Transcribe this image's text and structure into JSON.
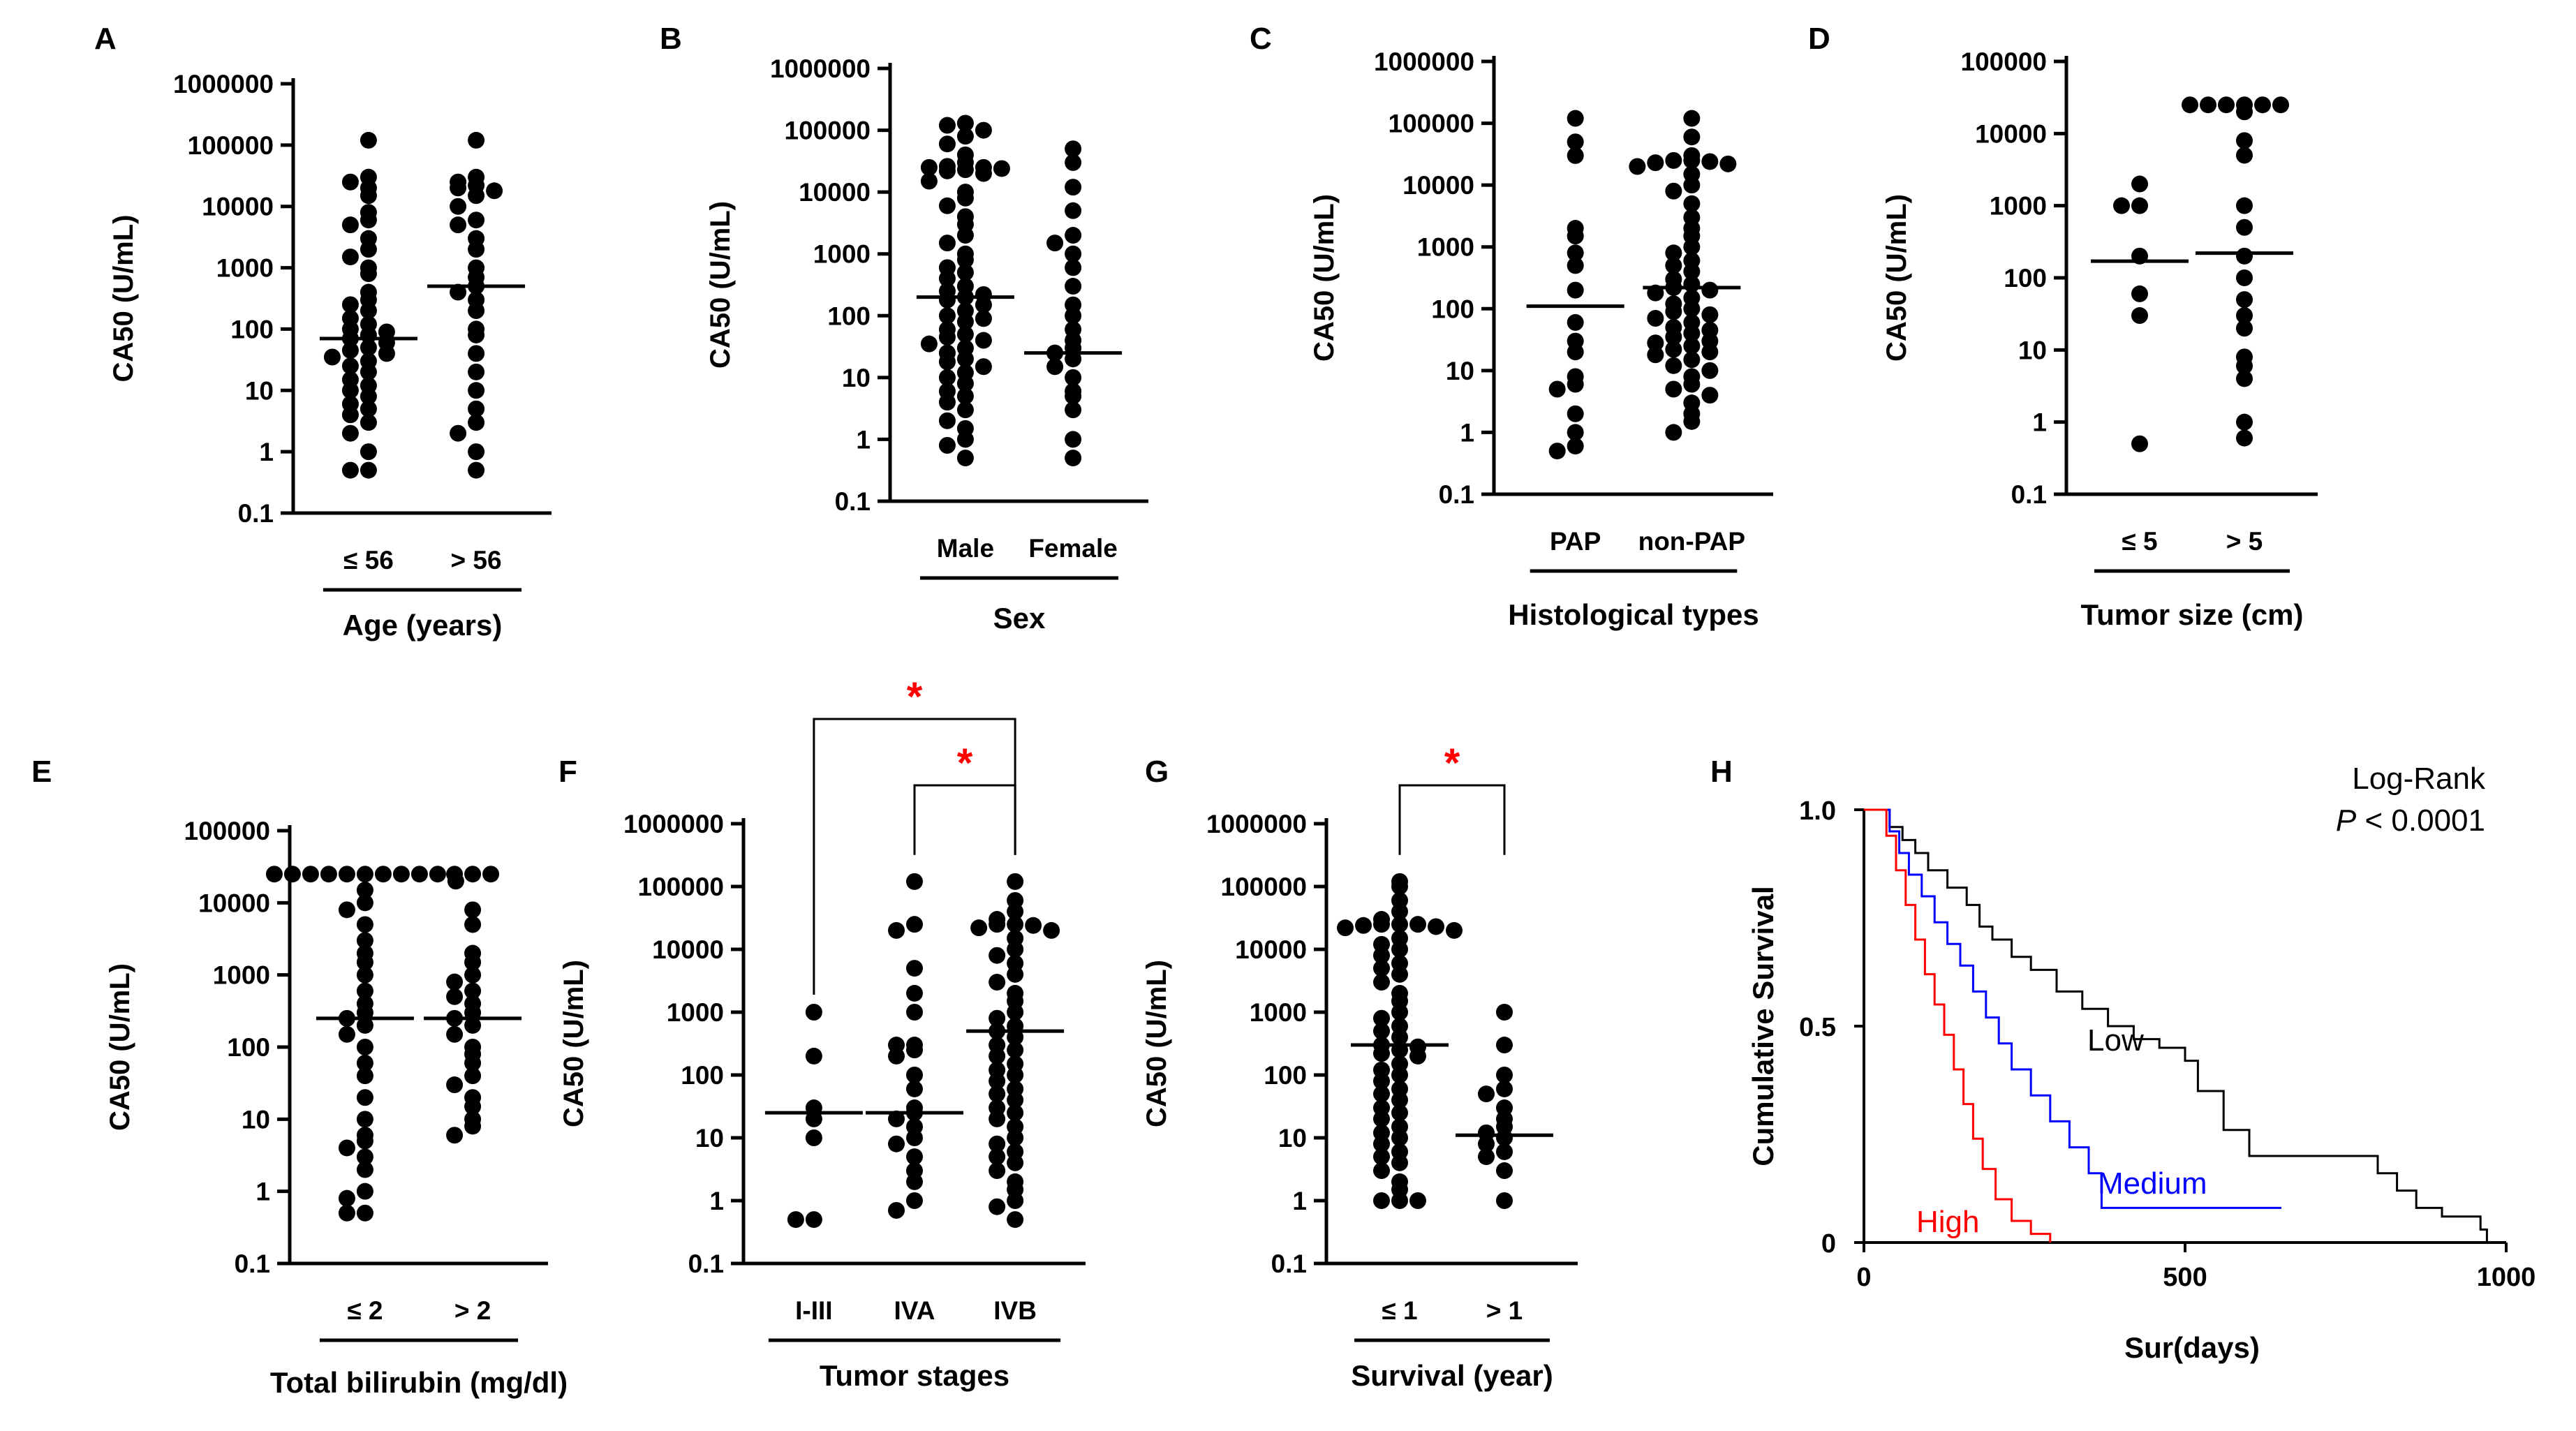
{
  "figure": {
    "panel_labels": [
      "A",
      "B",
      "C",
      "D",
      "E",
      "F",
      "G",
      "H"
    ]
  },
  "chart_data": [
    {
      "panel": "A",
      "type": "scatter",
      "scale": "log",
      "ylabel": "CA50 (U/mL)",
      "ylim": [
        0.1,
        1000000
      ],
      "yticks": [
        "0.1",
        "1",
        "10",
        "100",
        "1000",
        "10000",
        "100000",
        "1000000"
      ],
      "xlabel": "Age (years)",
      "categories": [
        "≤ 56",
        "> 56"
      ],
      "medians": [
        70,
        500
      ],
      "significance": [],
      "series": [
        {
          "name": "≤ 56",
          "values": [
            120000,
            30000,
            25000,
            20000,
            15000,
            8000,
            6000,
            5000,
            3000,
            2000,
            1500,
            1000,
            800,
            400,
            300,
            250,
            200,
            150,
            120,
            100,
            90,
            80,
            70,
            60,
            50,
            45,
            40,
            35,
            30,
            25,
            20,
            15,
            12,
            10,
            8,
            6,
            5,
            4,
            3,
            2,
            1,
            0.5,
            0.5
          ]
        },
        {
          "name": "> 56",
          "values": [
            120000,
            30000,
            25000,
            22000,
            20000,
            18000,
            15000,
            10000,
            6000,
            5000,
            3000,
            2000,
            1000,
            700,
            500,
            400,
            300,
            200,
            100,
            80,
            40,
            20,
            10,
            5,
            3,
            2,
            1,
            0.5
          ]
        }
      ]
    },
    {
      "panel": "B",
      "type": "scatter",
      "scale": "log",
      "ylabel": "CA50 (U/mL)",
      "ylim": [
        0.1,
        1000000
      ],
      "yticks": [
        "0.1",
        "1",
        "10",
        "100",
        "1000",
        "10000",
        "100000",
        "1000000"
      ],
      "xlabel": "Sex",
      "categories": [
        "Male",
        "Female"
      ],
      "medians": [
        200,
        25
      ],
      "significance": [],
      "series": [
        {
          "name": "Male",
          "values": [
            130000,
            120000,
            100000,
            80000,
            60000,
            40000,
            30000,
            26000,
            25000,
            25000,
            24000,
            23000,
            22000,
            20000,
            15000,
            10000,
            8000,
            6000,
            4000,
            3000,
            2000,
            1500,
            1000,
            800,
            600,
            500,
            400,
            300,
            250,
            220,
            200,
            180,
            150,
            120,
            100,
            90,
            80,
            60,
            50,
            45,
            40,
            35,
            30,
            25,
            20,
            18,
            15,
            12,
            10,
            8,
            6,
            5,
            4,
            3,
            2,
            1.5,
            1,
            0.8,
            0.5
          ]
        },
        {
          "name": "Female",
          "values": [
            50000,
            30000,
            12000,
            5000,
            2000,
            1500,
            1000,
            600,
            300,
            150,
            100,
            60,
            40,
            30,
            25,
            20,
            15,
            10,
            6,
            5,
            3,
            1,
            0.5
          ]
        }
      ]
    },
    {
      "panel": "C",
      "type": "scatter",
      "scale": "log",
      "ylabel": "CA50 (U/mL)",
      "ylim": [
        0.1,
        1000000
      ],
      "yticks": [
        "0.1",
        "1",
        "10",
        "100",
        "1000",
        "10000",
        "100000",
        "1000000"
      ],
      "xlabel": "Histological types",
      "categories": [
        "PAP",
        "non-PAP"
      ],
      "medians": [
        110,
        220
      ],
      "significance": [],
      "series": [
        {
          "name": "PAP",
          "values": [
            120000,
            50000,
            30000,
            2000,
            1500,
            800,
            500,
            200,
            60,
            30,
            20,
            8,
            6,
            5,
            2,
            1,
            0.6,
            0.5
          ]
        },
        {
          "name": "non-PAP",
          "values": [
            120000,
            60000,
            30000,
            25000,
            25000,
            24000,
            23000,
            22000,
            20000,
            15000,
            10000,
            8000,
            5000,
            3000,
            2000,
            1500,
            1000,
            800,
            600,
            500,
            400,
            300,
            250,
            220,
            200,
            180,
            150,
            120,
            100,
            90,
            80,
            70,
            60,
            50,
            45,
            40,
            35,
            30,
            28,
            25,
            22,
            20,
            18,
            15,
            12,
            10,
            8,
            6,
            5,
            4,
            3,
            2,
            1.5,
            1
          ]
        }
      ]
    },
    {
      "panel": "D",
      "type": "scatter",
      "scale": "log",
      "ylabel": "CA50 (U/mL)",
      "ylim": [
        0.1,
        100000
      ],
      "yticks": [
        "0.1",
        "1",
        "10",
        "100",
        "1000",
        "10000",
        "100000"
      ],
      "xlabel": "Tumor size (cm)",
      "categories": [
        "≤ 5",
        "> 5"
      ],
      "medians": [
        170,
        220
      ],
      "significance": [],
      "series": [
        {
          "name": "≤ 5",
          "values": [
            2000,
            1000,
            1000,
            200,
            60,
            30,
            0.5
          ]
        },
        {
          "name": "> 5",
          "values": [
            25000,
            25000,
            25000,
            25000,
            25000,
            25000,
            20000,
            8000,
            5000,
            1000,
            500,
            200,
            100,
            50,
            30,
            20,
            8,
            6,
            4,
            1,
            0.6
          ]
        }
      ]
    },
    {
      "panel": "E",
      "type": "scatter",
      "scale": "log",
      "ylabel": "CA50 (U/mL)",
      "ylim": [
        0.1,
        100000
      ],
      "yticks": [
        "0.1",
        "1",
        "10",
        "100",
        "1000",
        "10000",
        "100000"
      ],
      "xlabel": "Total bilirubin  (mg/dl)",
      "categories": [
        "≤ 2",
        "> 2"
      ],
      "medians": [
        250,
        250
      ],
      "significance": [],
      "series": [
        {
          "name": "≤ 2",
          "values": [
            25000,
            25000,
            25000,
            25000,
            25000,
            25000,
            25000,
            25000,
            25000,
            25000,
            20000,
            15000,
            10000,
            8000,
            5000,
            3000,
            2000,
            1500,
            1000,
            600,
            400,
            300,
            250,
            200,
            150,
            100,
            60,
            40,
            20,
            10,
            6,
            5,
            4,
            3,
            2,
            1,
            0.8,
            0.5,
            0.5
          ]
        },
        {
          "name": "> 2",
          "values": [
            25000,
            25000,
            25000,
            8000,
            5000,
            2000,
            1500,
            1000,
            800,
            600,
            500,
            400,
            300,
            250,
            200,
            150,
            100,
            80,
            60,
            40,
            30,
            20,
            15,
            10,
            8,
            6
          ]
        }
      ]
    },
    {
      "panel": "F",
      "type": "scatter",
      "scale": "log",
      "ylabel": "CA50 (U/mL)",
      "ylim": [
        0.1,
        1000000
      ],
      "yticks": [
        "0.1",
        "1",
        "10",
        "100",
        "1000",
        "10000",
        "100000",
        "1000000"
      ],
      "xlabel": "Tumor stages",
      "categories": [
        "I-III",
        "IVA",
        "IVB"
      ],
      "medians": [
        25,
        25,
        500
      ],
      "significance": [
        {
          "from": 0,
          "to": 2,
          "label": "*"
        },
        {
          "from": 1,
          "to": 2,
          "label": "*"
        }
      ],
      "series": [
        {
          "name": "I-III",
          "values": [
            1000,
            200,
            30,
            20,
            10,
            0.5,
            0.5
          ]
        },
        {
          "name": "IVA",
          "values": [
            120000,
            25000,
            20000,
            5000,
            2000,
            1000,
            300,
            300,
            250,
            200,
            100,
            60,
            30,
            25,
            20,
            15,
            10,
            8,
            5,
            3,
            2,
            1,
            0.7
          ]
        },
        {
          "name": "IVB",
          "values": [
            120000,
            60000,
            40000,
            30000,
            25000,
            25000,
            24000,
            22000,
            20000,
            15000,
            10000,
            8000,
            6000,
            4000,
            3000,
            2000,
            1500,
            1000,
            800,
            600,
            500,
            400,
            300,
            250,
            200,
            150,
            120,
            100,
            80,
            60,
            50,
            40,
            30,
            25,
            20,
            15,
            10,
            8,
            6,
            5,
            4,
            3,
            2,
            1.5,
            1,
            0.8,
            0.5
          ]
        }
      ]
    },
    {
      "panel": "G",
      "type": "scatter",
      "scale": "log",
      "ylabel": "CA50 (U/mL)",
      "ylim": [
        0.1,
        1000000
      ],
      "yticks": [
        "0.1",
        "1",
        "10",
        "100",
        "1000",
        "10000",
        "100000",
        "1000000"
      ],
      "xlabel": "Survival (year)",
      "categories": [
        "≤ 1",
        "> 1"
      ],
      "medians": [
        300,
        11
      ],
      "significance": [
        {
          "from": 0,
          "to": 1,
          "label": "*"
        }
      ],
      "series": [
        {
          "name": "≤ 1",
          "values": [
            120000,
            100000,
            60000,
            40000,
            30000,
            25000,
            25000,
            25000,
            24000,
            23000,
            22000,
            20000,
            15000,
            12000,
            10000,
            8000,
            6000,
            5000,
            4000,
            3000,
            2000,
            1500,
            1000,
            800,
            600,
            500,
            400,
            300,
            280,
            250,
            220,
            200,
            150,
            120,
            100,
            80,
            60,
            50,
            40,
            30,
            25,
            20,
            15,
            12,
            10,
            8,
            6,
            5,
            4,
            3,
            2,
            1.5,
            1,
            1,
            1
          ]
        },
        {
          "name": "> 1",
          "values": [
            1000,
            300,
            100,
            60,
            50,
            30,
            20,
            15,
            12,
            10,
            8,
            6,
            5,
            3,
            1
          ]
        }
      ]
    },
    {
      "panel": "H",
      "type": "line",
      "subtype": "kaplan-meier",
      "ylabel": "Cumulative Survival",
      "xlabel": "Sur(days)",
      "xlim": [
        0,
        1000
      ],
      "ylim": [
        0,
        1
      ],
      "xticks": [
        "0",
        "500",
        "1000"
      ],
      "yticks": [
        "0",
        "0.5",
        "1.0"
      ],
      "annotation_test": "Log-Rank",
      "annotation_p_italic": "P",
      "annotation_p_rest": " < 0.0001",
      "series": [
        {
          "name": "Low",
          "color": "#000000",
          "points": [
            [
              0,
              1
            ],
            [
              25,
              1
            ],
            [
              40,
              0.96
            ],
            [
              60,
              0.93
            ],
            [
              80,
              0.9
            ],
            [
              100,
              0.86
            ],
            [
              130,
              0.82
            ],
            [
              160,
              0.78
            ],
            [
              180,
              0.73
            ],
            [
              200,
              0.7
            ],
            [
              230,
              0.66
            ],
            [
              260,
              0.63
            ],
            [
              300,
              0.58
            ],
            [
              340,
              0.54
            ],
            [
              380,
              0.5
            ],
            [
              420,
              0.47
            ],
            [
              460,
              0.45
            ],
            [
              500,
              0.42
            ],
            [
              520,
              0.35
            ],
            [
              560,
              0.26
            ],
            [
              600,
              0.2
            ],
            [
              800,
              0.16
            ],
            [
              830,
              0.12
            ],
            [
              860,
              0.08
            ],
            [
              900,
              0.06
            ],
            [
              960,
              0.03
            ],
            [
              970,
              0
            ]
          ]
        },
        {
          "name": "Medium",
          "color": "#0000ff",
          "points": [
            [
              0,
              1
            ],
            [
              25,
              1
            ],
            [
              40,
              0.95
            ],
            [
              55,
              0.9
            ],
            [
              70,
              0.85
            ],
            [
              90,
              0.8
            ],
            [
              110,
              0.74
            ],
            [
              130,
              0.69
            ],
            [
              150,
              0.64
            ],
            [
              170,
              0.58
            ],
            [
              190,
              0.52
            ],
            [
              210,
              0.46
            ],
            [
              230,
              0.4
            ],
            [
              260,
              0.34
            ],
            [
              290,
              0.28
            ],
            [
              320,
              0.22
            ],
            [
              350,
              0.16
            ],
            [
              370,
              0.08
            ],
            [
              560,
              0.08
            ],
            [
              650,
              0.08
            ]
          ]
        },
        {
          "name": "High",
          "color": "#ff0000",
          "points": [
            [
              0,
              1
            ],
            [
              20,
              1
            ],
            [
              35,
              0.94
            ],
            [
              50,
              0.86
            ],
            [
              65,
              0.78
            ],
            [
              80,
              0.7
            ],
            [
              95,
              0.62
            ],
            [
              110,
              0.55
            ],
            [
              125,
              0.48
            ],
            [
              140,
              0.4
            ],
            [
              155,
              0.32
            ],
            [
              170,
              0.24
            ],
            [
              185,
              0.17
            ],
            [
              205,
              0.1
            ],
            [
              230,
              0.05
            ],
            [
              260,
              0.02
            ],
            [
              290,
              0
            ]
          ]
        }
      ]
    }
  ]
}
